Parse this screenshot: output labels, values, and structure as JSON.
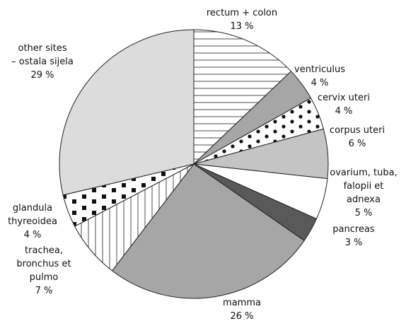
{
  "chart_data": {
    "type": "pie",
    "categories": [
      [
        "rectum + colon"
      ],
      [
        "ventriculus"
      ],
      [
        "cervix uteri"
      ],
      [
        "corpus uteri"
      ],
      [
        "ovarium, tuba,",
        "falopii et",
        "adnexa"
      ],
      [
        "pancreas"
      ],
      [
        "mamma"
      ],
      [
        "trachea,",
        "bronchus et",
        "pulmo"
      ],
      [
        "glandula",
        "thyreoidea"
      ],
      [
        "other sites",
        "– ostala sijela"
      ]
    ],
    "values": [
      13,
      4,
      4,
      6,
      5,
      3,
      26,
      7,
      4,
      29
    ],
    "value_labels": [
      "13 %",
      "4 %",
      "4 %",
      "6 %",
      "5 %",
      "3 %",
      "26 %",
      "7 %",
      "4 %",
      "29 %"
    ],
    "colors": [
      "#ffffff",
      "#a6a6a6",
      "#ffffff",
      "#c4c4c4",
      "#ffffff",
      "#595959",
      "#a6a6a6",
      "#ffffff",
      "#ffffff",
      "#dcdcdc"
    ],
    "patterns": [
      "horizontal",
      null,
      "dots",
      null,
      null,
      null,
      null,
      "vertical",
      "squares",
      null
    ]
  }
}
